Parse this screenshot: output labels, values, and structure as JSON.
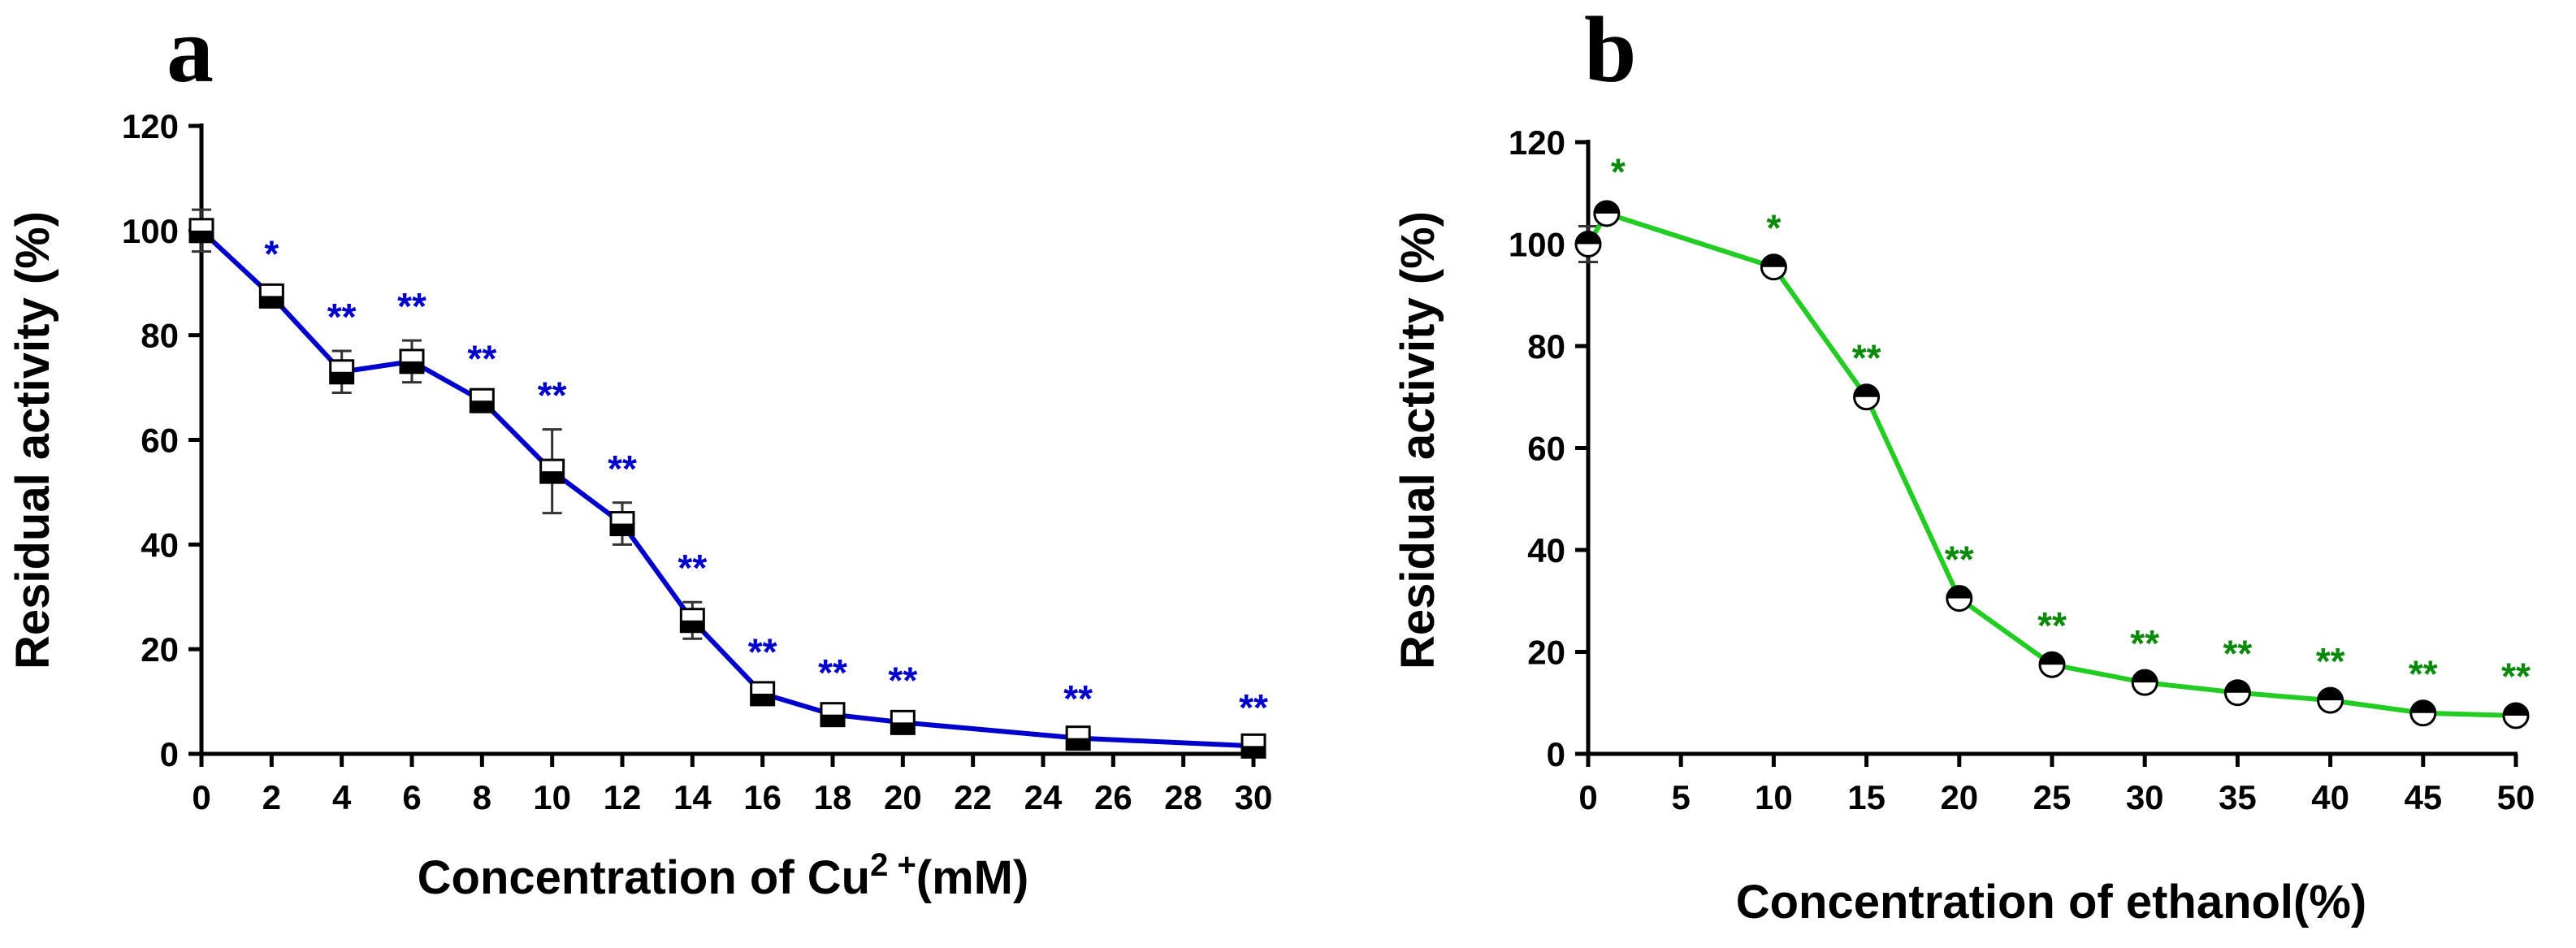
{
  "chart_data": [
    {
      "panel": "a",
      "type": "line",
      "xlabel_parts": [
        "Concentration of Cu",
        "2 +",
        "(mM)"
      ],
      "ylabel": "Residual activity (%)",
      "x_ticks": [
        "0",
        "2",
        "4",
        "6",
        "8",
        "10",
        "12",
        "14",
        "16",
        "18",
        "20",
        "22",
        "24",
        "26",
        "28",
        "30"
      ],
      "y_ticks": [
        "0",
        "20",
        "40",
        "60",
        "80",
        "100",
        "120"
      ],
      "xlim": [
        0,
        30
      ],
      "ylim": [
        0,
        120
      ],
      "line_color": "#0000cc",
      "marker": "half-filled-square",
      "series": [
        {
          "name": "Cu2+",
          "x": [
            0,
            2,
            4,
            6,
            8,
            10,
            12,
            14,
            16,
            18,
            20,
            25,
            30
          ],
          "y": [
            100,
            87.5,
            73,
            75,
            67.5,
            54,
            44,
            25.5,
            11.5,
            7.5,
            6,
            3,
            1.5
          ],
          "err": [
            4,
            1.5,
            4,
            4,
            1.5,
            8,
            4,
            3.5,
            1.5,
            1.5,
            1.5,
            1,
            0.8
          ],
          "labels": [
            "",
            "*",
            "**",
            "**",
            "**",
            "**",
            "**",
            "**",
            "**",
            "**",
            "**",
            "**",
            "**"
          ]
        }
      ]
    },
    {
      "panel": "b",
      "type": "line",
      "xlabel": "Concentration of ethanol(%)",
      "ylabel": "Residual activity (%)",
      "x_ticks": [
        "0",
        "5",
        "10",
        "15",
        "20",
        "25",
        "30",
        "35",
        "40",
        "45",
        "50"
      ],
      "y_ticks": [
        "0",
        "20",
        "40",
        "60",
        "80",
        "100",
        "120"
      ],
      "xlim": [
        0,
        50
      ],
      "ylim": [
        0,
        120
      ],
      "line_color": "#22cc22",
      "label_color": "#0a8a0a",
      "marker": "half-filled-circle",
      "series": [
        {
          "name": "ethanol",
          "x": [
            0,
            1,
            10,
            15,
            20,
            25,
            30,
            35,
            40,
            45,
            50
          ],
          "y": [
            100,
            106,
            95.5,
            70,
            30.5,
            17.5,
            14,
            12,
            10.5,
            8,
            7.5
          ],
          "err": [
            3.5,
            1.5,
            1,
            1,
            1,
            1,
            1,
            1,
            1,
            1,
            1
          ],
          "labels": [
            "",
            "*",
            "*",
            "**",
            "**",
            "**",
            "**",
            "**",
            "**",
            "**",
            "**"
          ]
        }
      ]
    }
  ]
}
